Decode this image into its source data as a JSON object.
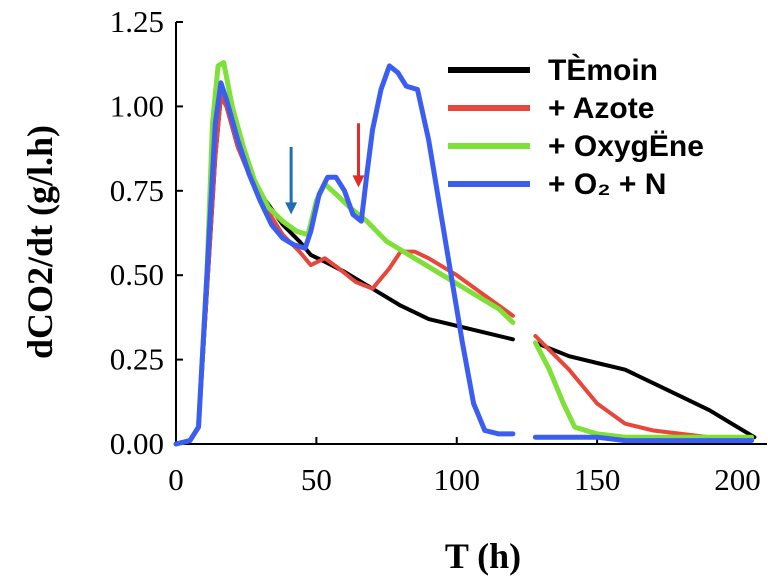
{
  "chart_data": {
    "type": "line",
    "xlabel": "T (h)",
    "ylabel": "dCO2/dt (g/l.h)",
    "xlim": [
      0,
      210
    ],
    "ylim": [
      0,
      1.25
    ],
    "xticks": [
      "0",
      "50",
      "100",
      "150",
      "200"
    ],
    "yticks": [
      "0.00",
      "0.25",
      "0.50",
      "0.75",
      "1.00",
      "1.25"
    ],
    "grid": false,
    "legend_position": "top-right",
    "series": [
      {
        "name": "TÈmoin",
        "color": "#000000",
        "points": [
          [
            0,
            0
          ],
          [
            5,
            0.01
          ],
          [
            8,
            0.05
          ],
          [
            11,
            0.45
          ],
          [
            14,
            0.85
          ],
          [
            16,
            1.03
          ],
          [
            18,
            1.0
          ],
          [
            22,
            0.88
          ],
          [
            27,
            0.78
          ],
          [
            32,
            0.72
          ],
          [
            38,
            0.65
          ],
          [
            44,
            0.6
          ],
          [
            48,
            0.56
          ],
          [
            53,
            0.54
          ],
          [
            60,
            0.51
          ],
          [
            70,
            0.46
          ],
          [
            80,
            0.41
          ],
          [
            90,
            0.37
          ],
          [
            100,
            0.35
          ],
          [
            110,
            0.33
          ],
          [
            120,
            0.31
          ],
          [
            null,
            null
          ],
          [
            128,
            0.3
          ],
          [
            140,
            0.26
          ],
          [
            150,
            0.24
          ],
          [
            160,
            0.22
          ],
          [
            170,
            0.18
          ],
          [
            180,
            0.14
          ],
          [
            190,
            0.1
          ],
          [
            200,
            0.05
          ],
          [
            206,
            0.02
          ]
        ]
      },
      {
        "name": "+ Azote",
        "color": "#e8463a",
        "points": [
          [
            0,
            0
          ],
          [
            5,
            0.01
          ],
          [
            8,
            0.05
          ],
          [
            11,
            0.45
          ],
          [
            14,
            0.85
          ],
          [
            16,
            1.03
          ],
          [
            18,
            1.0
          ],
          [
            22,
            0.88
          ],
          [
            27,
            0.78
          ],
          [
            32,
            0.7
          ],
          [
            38,
            0.62
          ],
          [
            44,
            0.57
          ],
          [
            48,
            0.53
          ],
          [
            53,
            0.55
          ],
          [
            58,
            0.52
          ],
          [
            64,
            0.48
          ],
          [
            70,
            0.46
          ],
          [
            76,
            0.52
          ],
          [
            80,
            0.57
          ],
          [
            85,
            0.57
          ],
          [
            90,
            0.55
          ],
          [
            100,
            0.5
          ],
          [
            110,
            0.44
          ],
          [
            120,
            0.38
          ],
          [
            null,
            null
          ],
          [
            128,
            0.32
          ],
          [
            140,
            0.22
          ],
          [
            150,
            0.12
          ],
          [
            160,
            0.06
          ],
          [
            170,
            0.04
          ],
          [
            180,
            0.03
          ],
          [
            190,
            0.02
          ],
          [
            200,
            0.01
          ],
          [
            205,
            0.01
          ]
        ]
      },
      {
        "name": "+ OxygËne",
        "color": "#7fe03a",
        "points": [
          [
            0,
            0
          ],
          [
            5,
            0.01
          ],
          [
            8,
            0.05
          ],
          [
            11,
            0.5
          ],
          [
            13,
            0.95
          ],
          [
            15,
            1.12
          ],
          [
            17,
            1.13
          ],
          [
            20,
            1.0
          ],
          [
            24,
            0.88
          ],
          [
            28,
            0.78
          ],
          [
            33,
            0.7
          ],
          [
            38,
            0.66
          ],
          [
            43,
            0.63
          ],
          [
            47,
            0.62
          ],
          [
            50,
            0.72
          ],
          [
            53,
            0.77
          ],
          [
            57,
            0.74
          ],
          [
            62,
            0.7
          ],
          [
            68,
            0.66
          ],
          [
            75,
            0.6
          ],
          [
            85,
            0.55
          ],
          [
            95,
            0.5
          ],
          [
            105,
            0.45
          ],
          [
            115,
            0.4
          ],
          [
            120,
            0.36
          ],
          [
            null,
            null
          ],
          [
            128,
            0.3
          ],
          [
            133,
            0.22
          ],
          [
            138,
            0.12
          ],
          [
            142,
            0.05
          ],
          [
            150,
            0.03
          ],
          [
            160,
            0.02
          ],
          [
            180,
            0.02
          ],
          [
            205,
            0.02
          ]
        ]
      },
      {
        "name": "+ O₂ + N",
        "color": "#3c5ef0",
        "points": [
          [
            0,
            0
          ],
          [
            5,
            0.01
          ],
          [
            8,
            0.05
          ],
          [
            11,
            0.5
          ],
          [
            14,
            0.95
          ],
          [
            16,
            1.07
          ],
          [
            18,
            1.02
          ],
          [
            22,
            0.9
          ],
          [
            26,
            0.8
          ],
          [
            30,
            0.72
          ],
          [
            34,
            0.65
          ],
          [
            38,
            0.61
          ],
          [
            42,
            0.59
          ],
          [
            46,
            0.58
          ],
          [
            48,
            0.63
          ],
          [
            51,
            0.74
          ],
          [
            54,
            0.79
          ],
          [
            57,
            0.79
          ],
          [
            60,
            0.75
          ],
          [
            63,
            0.68
          ],
          [
            66,
            0.66
          ],
          [
            68,
            0.8
          ],
          [
            70,
            0.93
          ],
          [
            73,
            1.05
          ],
          [
            76,
            1.12
          ],
          [
            79,
            1.1
          ],
          [
            82,
            1.06
          ],
          [
            86,
            1.05
          ],
          [
            90,
            0.9
          ],
          [
            94,
            0.7
          ],
          [
            98,
            0.5
          ],
          [
            102,
            0.3
          ],
          [
            106,
            0.12
          ],
          [
            110,
            0.04
          ],
          [
            115,
            0.03
          ],
          [
            120,
            0.03
          ],
          [
            null,
            null
          ],
          [
            128,
            0.02
          ],
          [
            140,
            0.02
          ],
          [
            150,
            0.02
          ],
          [
            160,
            0.01
          ],
          [
            180,
            0.01
          ],
          [
            200,
            0.01
          ],
          [
            205,
            0.01
          ]
        ]
      }
    ],
    "annotations": [
      {
        "type": "arrow-down",
        "color": "#1f6fb8",
        "x": 41,
        "y_top": 0.88,
        "y_bottom": 0.68
      },
      {
        "type": "arrow-down",
        "color": "#e22b2b",
        "x": 65,
        "y_top": 0.95,
        "y_bottom": 0.76
      }
    ]
  }
}
